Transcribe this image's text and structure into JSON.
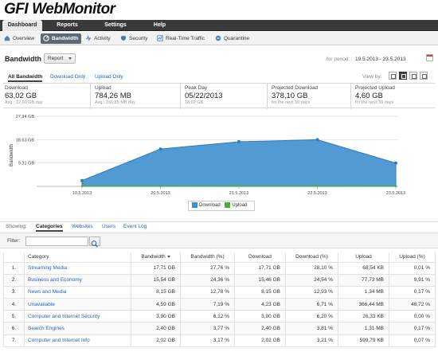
{
  "app": {
    "logo_prefix": "GFI",
    "logo_name": "WebMonitor",
    "brand_color": "#111111"
  },
  "main_nav": [
    {
      "label": "Dashboard",
      "active": true
    },
    {
      "label": "Reports",
      "active": false
    },
    {
      "label": "Settings",
      "active": false
    },
    {
      "label": "Help",
      "active": false
    }
  ],
  "sub_nav": [
    {
      "label": "Overview",
      "icon": "overview-icon",
      "active": false
    },
    {
      "label": "Bandwidth",
      "icon": "bandwidth-icon",
      "active": true
    },
    {
      "label": "Activity",
      "icon": "activity-icon",
      "active": false
    },
    {
      "label": "Security",
      "icon": "security-icon",
      "active": false
    },
    {
      "label": "Real-Time Traffic",
      "icon": "real-time-traffic-icon",
      "active": false
    },
    {
      "label": "Quarantine",
      "icon": "quarantine-icon",
      "active": false
    }
  ],
  "header": {
    "title": "Bandwidth",
    "report_button": "Report",
    "period_label": "for period:",
    "period_value": "19.5.2013 - 23.5.2013"
  },
  "filter_tabs": [
    {
      "label": "All Bandwidth",
      "active": true
    },
    {
      "label": "Download Only",
      "active": false
    },
    {
      "label": "Upload Only",
      "active": false
    }
  ],
  "view_by": {
    "label": "View by:"
  },
  "stats": [
    {
      "label": "Download",
      "value": "63,02 GB",
      "sub": "Avg.: 12,60 GB day"
    },
    {
      "label": "Upload",
      "value": "784,26 MB",
      "sub": "Avg.: 156,85 MB day"
    },
    {
      "label": "Peak Day",
      "value": "05/22/2013",
      "sub": "18,92 GB"
    },
    {
      "label": "Projected Download",
      "value": "378,10 GB",
      "sub": "for the next 30 days"
    },
    {
      "label": "Projected Upload",
      "value": "4,60 GB",
      "sub": "for the next 30 days"
    }
  ],
  "chart_data": {
    "type": "area",
    "ylabel": "Bandwidth",
    "y_ticks": [
      "9.31 GB",
      "18.63 GB",
      "27.94 GB"
    ],
    "ylim": [
      0,
      27.94
    ],
    "grid": true,
    "legend_position": "bottom",
    "categories": [
      "19.5.2013",
      "20.5.2013",
      "21.5.2013",
      "22.5.2013",
      "23.5.2013"
    ],
    "series": [
      {
        "name": "Download",
        "color": "#3e8fce",
        "values": [
          2.3,
          14.9,
          17.8,
          18.6,
          9.3
        ]
      },
      {
        "name": "Upload",
        "color": "#4caf3c",
        "values": [
          0.1,
          0.1,
          0.2,
          0.2,
          0.1
        ]
      }
    ]
  },
  "showing": {
    "label": "Showing:",
    "tabs": [
      {
        "label": "Categories",
        "active": true
      },
      {
        "label": "Websites",
        "active": false
      },
      {
        "label": "Users",
        "active": false
      },
      {
        "label": "Event Log",
        "active": false
      }
    ]
  },
  "filter": {
    "label": "Filter:",
    "value": ""
  },
  "table": {
    "columns": [
      "Category",
      "Bandwidth",
      "Bandwidth (%)",
      "Download",
      "Download (%)",
      "Upload",
      "Upload (%)"
    ],
    "rows": [
      {
        "n": "1.",
        "category": "Streaming Media",
        "bandwidth": "17,71 GB",
        "bandwidth_pct": "27,76 %",
        "download": "17,71 GB",
        "download_pct": "28,10 %",
        "upload": "68,54 KB",
        "upload_pct": "0,01 %"
      },
      {
        "n": "2.",
        "category": "Business and Economy",
        "bandwidth": "15,54 GB",
        "bandwidth_pct": "24,36 %",
        "download": "15,46 GB",
        "download_pct": "24,54 %",
        "upload": "77,73 MB",
        "upload_pct": "9,91 %"
      },
      {
        "n": "3.",
        "category": "News and Media",
        "bandwidth": "8,15 GB",
        "bandwidth_pct": "12,78 %",
        "download": "8,15 GB",
        "download_pct": "12,93 %",
        "upload": "1,34 MB",
        "upload_pct": "0,17 %"
      },
      {
        "n": "4.",
        "category": "Unavailable",
        "bandwidth": "4,59 GB",
        "bandwidth_pct": "7,19 %",
        "download": "4,23 GB",
        "download_pct": "6,71 %",
        "upload": "366,44 MB",
        "upload_pct": "46,72 %"
      },
      {
        "n": "5.",
        "category": "Computer and Internet Security",
        "bandwidth": "3,90 GB",
        "bandwidth_pct": "6,12 %",
        "download": "3,90 GB",
        "download_pct": "6,20 %",
        "upload": "26,33 KB",
        "upload_pct": "0,00 %"
      },
      {
        "n": "6.",
        "category": "Search Engines",
        "bandwidth": "2,40 GB",
        "bandwidth_pct": "3,77 %",
        "download": "2,40 GB",
        "download_pct": "3,81 %",
        "upload": "1,31 MB",
        "upload_pct": "0,17 %"
      },
      {
        "n": "7.",
        "category": "Computer and Internet Info",
        "bandwidth": "2,02 GB",
        "bandwidth_pct": "3,17 %",
        "download": "2,02 GB",
        "download_pct": "3,21 %",
        "upload": "599,79 KB",
        "upload_pct": "0,07 %"
      }
    ]
  }
}
